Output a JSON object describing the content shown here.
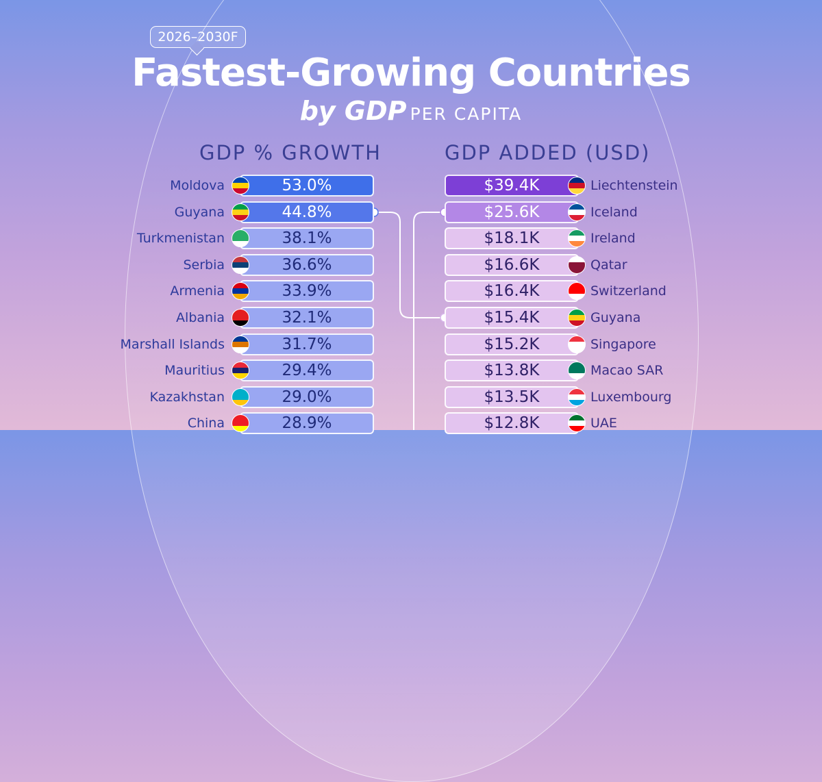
{
  "header": {
    "badge": "2026–2030F",
    "title": "Fastest-Growing Countries",
    "subtitle_big": "by GDP",
    "subtitle_small": "PER CAPITA"
  },
  "chart_data": [
    {
      "type": "bar",
      "title": "GDP % GROWTH",
      "categories": [
        "Moldova",
        "Guyana",
        "Turkmenistan",
        "Serbia",
        "Armenia",
        "Albania",
        "Marshall Islands",
        "Mauritius",
        "Kazakhstan",
        "China"
      ],
      "labels": [
        "53.0%",
        "44.8%",
        "38.1%",
        "36.6%",
        "33.9%",
        "32.1%",
        "31.7%",
        "29.4%",
        "29.0%",
        "28.9%"
      ],
      "values": [
        53.0,
        44.8,
        38.1,
        36.6,
        33.9,
        32.1,
        31.7,
        29.4,
        29.0,
        28.9
      ],
      "unit": "%"
    },
    {
      "type": "bar",
      "title": "GDP ADDED (USD)",
      "categories": [
        "Liechtenstein",
        "Iceland",
        "Ireland",
        "Qatar",
        "Switzerland",
        "Guyana",
        "Singapore",
        "Macao SAR",
        "Luxembourg",
        "UAE"
      ],
      "labels": [
        "$39.4K",
        "$25.6K",
        "$18.1K",
        "$16.6K",
        "$16.4K",
        "$15.4K",
        "$15.2K",
        "$13.8K",
        "$13.5K",
        "$12.8K"
      ],
      "values": [
        39.4,
        25.6,
        18.1,
        16.6,
        16.4,
        15.4,
        15.2,
        13.8,
        13.5,
        12.8
      ],
      "unit": "USD thousands"
    }
  ],
  "left_flags": [
    {
      "icon": "moldova-flag-icon",
      "c": [
        "#0046ae",
        "#ffd200",
        "#cc092f"
      ]
    },
    {
      "icon": "guyana-flag-icon",
      "c": [
        "#009e49",
        "#fcd116",
        "#ce1126"
      ]
    },
    {
      "icon": "turkmenistan-flag-icon",
      "c": [
        "#28ae66",
        "#28ae66",
        "#ffffff"
      ]
    },
    {
      "icon": "serbia-flag-icon",
      "c": [
        "#c6363c",
        "#0c4076",
        "#ffffff"
      ]
    },
    {
      "icon": "armenia-flag-icon",
      "c": [
        "#d90012",
        "#0033a0",
        "#f2a800"
      ]
    },
    {
      "icon": "albania-flag-icon",
      "c": [
        "#e41e20",
        "#e41e20",
        "#000000"
      ]
    },
    {
      "icon": "marshall-islands-flag-icon",
      "c": [
        "#003893",
        "#dd7500",
        "#ffffff"
      ]
    },
    {
      "icon": "mauritius-flag-icon",
      "c": [
        "#ea2839",
        "#1a206d",
        "#ffd500"
      ]
    },
    {
      "icon": "kazakhstan-flag-icon",
      "c": [
        "#00afca",
        "#00afca",
        "#fec50c"
      ]
    },
    {
      "icon": "china-flag-icon",
      "c": [
        "#ee1c25",
        "#ee1c25",
        "#ffff00"
      ]
    }
  ],
  "right_flags": [
    {
      "icon": "liechtenstein-flag-icon",
      "c": [
        "#002b7f",
        "#ce1126",
        "#ffd83d"
      ]
    },
    {
      "icon": "iceland-flag-icon",
      "c": [
        "#02529c",
        "#ffffff",
        "#dc1e35"
      ]
    },
    {
      "icon": "ireland-flag-icon",
      "c": [
        "#169b62",
        "#ffffff",
        "#ff883e"
      ]
    },
    {
      "icon": "qatar-flag-icon",
      "c": [
        "#ffffff",
        "#8a1538",
        "#8a1538"
      ]
    },
    {
      "icon": "switzerland-flag-icon",
      "c": [
        "#ff0000",
        "#ff0000",
        "#ffffff"
      ]
    },
    {
      "icon": "guyana-flag-icon",
      "c": [
        "#009e49",
        "#fcd116",
        "#ce1126"
      ]
    },
    {
      "icon": "singapore-flag-icon",
      "c": [
        "#ef3340",
        "#ffffff",
        "#ffffff"
      ]
    },
    {
      "icon": "macao-flag-icon",
      "c": [
        "#00785e",
        "#00785e",
        "#ffffff"
      ]
    },
    {
      "icon": "luxembourg-flag-icon",
      "c": [
        "#ef3340",
        "#ffffff",
        "#00a3e0"
      ]
    },
    {
      "icon": "uae-flag-icon",
      "c": [
        "#00732f",
        "#ffffff",
        "#ff0000"
      ]
    }
  ],
  "colors": {
    "left_top": "#3f6fe9",
    "left_second": "#5477ea",
    "left_rest": "#9aa7f2",
    "right_top": "#7d3fd6",
    "right_second": "#b387e6",
    "right_rest": "#e3c4ef"
  }
}
